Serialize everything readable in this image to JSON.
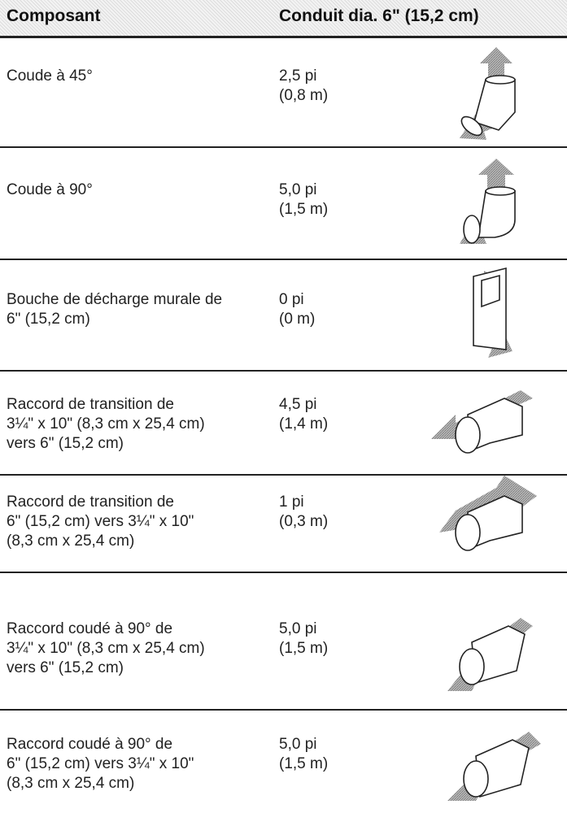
{
  "table": {
    "header": [
      "Composant",
      "Conduit dia. 6\" (15,2 cm)"
    ],
    "rows": [
      [
        [
          "Coude à 45°"
        ],
        [
          "2,5 pi",
          "(0,8 m)"
        ]
      ],
      [
        [
          "Coude à 90°"
        ],
        [
          "5,0 pi",
          "(1,5 m)"
        ]
      ],
      [
        [
          "Bouche de décharge murale de",
          "6\" (15,2 cm)"
        ],
        [
          "0 pi",
          "(0 m)"
        ]
      ],
      [
        [
          "Raccord de transition de",
          "3¼\" x 10\" (8,3 cm x 25,4 cm)",
          "vers 6\" (15,2 cm)"
        ],
        [
          "4,5 pi",
          "(1,4 m)"
        ]
      ],
      [
        [
          "Raccord de transition de",
          "6\" (15,2 cm) vers 3¼\" x 10\"",
          "(8,3 cm x 25,4 cm)"
        ],
        [
          "1 pi",
          "(0,3 m)"
        ]
      ],
      [
        [
          "Raccord coudé à 90° de",
          "3¼\" x 10\" (8,3 cm x 25,4 cm)",
          "vers 6\" (15,2 cm)"
        ],
        [
          "5,0 pi",
          "(1,5 m)"
        ]
      ],
      [
        [
          "Raccord coudé à 90° de",
          "6\" (15,2 cm) vers 3¼\" x 10\"",
          "(8,3 cm x 25,4 cm)"
        ],
        [
          "5,0 pi",
          "(1,5 m)"
        ]
      ]
    ]
  }
}
